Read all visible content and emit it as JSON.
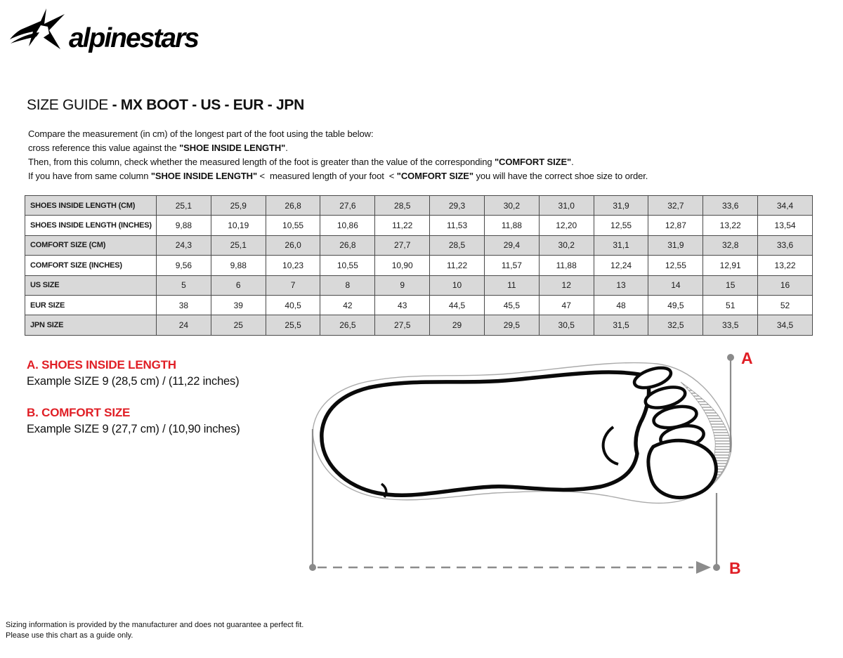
{
  "brand": {
    "logo_text": "alpinestars"
  },
  "title": {
    "regular": "SIZE GUIDE ",
    "bold": "- MX BOOT - US - EUR - JPN"
  },
  "intro": {
    "lines": [
      [
        {
          "t": "Compare the measurement (in cm) of the longest part of the foot using the table below:",
          "b": false
        }
      ],
      [
        {
          "t": "cross reference this value against the ",
          "b": false
        },
        {
          "t": "\"SHOE INSIDE LENGTH\"",
          "b": true
        },
        {
          "t": ".",
          "b": false
        }
      ],
      [
        {
          "t": "Then, from this column, check whether the measured length of the foot is greater than the value of the corresponding ",
          "b": false
        },
        {
          "t": "\"COMFORT SIZE\"",
          "b": true
        },
        {
          "t": ".",
          "b": false
        }
      ],
      [
        {
          "t": "If you have from same column ",
          "b": false
        },
        {
          "t": "\"SHOE INSIDE LENGTH\"",
          "b": true
        },
        {
          "t": " <  measured length of your foot  < ",
          "b": false
        },
        {
          "t": "\"COMFORT SIZE\"",
          "b": true
        },
        {
          "t": " you will have the correct shoe size to order.",
          "b": false
        }
      ]
    ]
  },
  "table": {
    "rows": [
      {
        "label": "SHOES INSIDE LENGTH (CM)",
        "values": [
          "25,1",
          "25,9",
          "26,8",
          "27,6",
          "28,5",
          "29,3",
          "30,2",
          "31,0",
          "31,9",
          "32,7",
          "33,6",
          "34,4"
        ]
      },
      {
        "label": "SHOES INSIDE LENGTH (INCHES)",
        "values": [
          "9,88",
          "10,19",
          "10,55",
          "10,86",
          "11,22",
          "11,53",
          "11,88",
          "12,20",
          "12,55",
          "12,87",
          "13,22",
          "13,54"
        ]
      },
      {
        "label": "COMFORT SIZE (CM)",
        "values": [
          "24,3",
          "25,1",
          "26,0",
          "26,8",
          "27,7",
          "28,5",
          "29,4",
          "30,2",
          "31,1",
          "31,9",
          "32,8",
          "33,6"
        ]
      },
      {
        "label": "COMFORT SIZE (INCHES)",
        "values": [
          "9,56",
          "9,88",
          "10,23",
          "10,55",
          "10,90",
          "11,22",
          "11,57",
          "11,88",
          "12,24",
          "12,55",
          "12,91",
          "13,22"
        ]
      },
      {
        "label": "US SIZE",
        "values": [
          "5",
          "6",
          "7",
          "8",
          "9",
          "10",
          "11",
          "12",
          "13",
          "14",
          "15",
          "16"
        ]
      },
      {
        "label": "EUR SIZE",
        "values": [
          "38",
          "39",
          "40,5",
          "42",
          "43",
          "44,5",
          "45,5",
          "47",
          "48",
          "49,5",
          "51",
          "52"
        ]
      },
      {
        "label": "JPN SIZE",
        "values": [
          "24",
          "25",
          "25,5",
          "26,5",
          "27,5",
          "29",
          "29,5",
          "30,5",
          "31,5",
          "32,5",
          "33,5",
          "34,5"
        ]
      }
    ]
  },
  "legend": {
    "items": [
      {
        "title": "A. SHOES INSIDE LENGTH",
        "example": "Example SIZE 9 (28,5 cm) / (11,22 inches)"
      },
      {
        "title": "B. COMFORT SIZE",
        "example": "Example SIZE 9 (27,7 cm) / (10,90 inches)"
      }
    ]
  },
  "diagram": {
    "label_a": "A",
    "label_b": "B"
  },
  "footer": {
    "lines": [
      "Sizing information is provided by the manufacturer and does not guarantee a perfect fit.",
      "Please use this chart as a guide only."
    ]
  },
  "colors": {
    "accent_red": "#e01e25",
    "table_shade": "#d9d9d9",
    "measure_line_gray": "#8c8c8c",
    "text": "#111111"
  }
}
